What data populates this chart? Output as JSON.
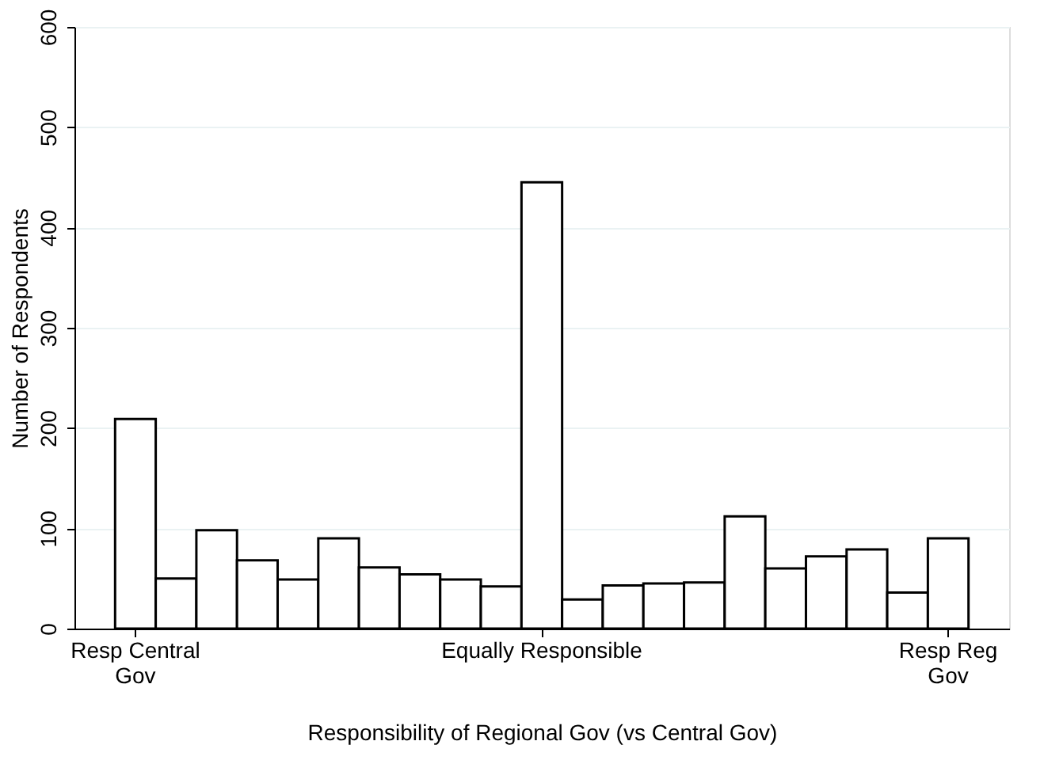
{
  "chart_data": {
    "type": "bar",
    "xlabel": "Responsibility of Regional Gov (vs Central Gov)",
    "ylabel": "Number of Respondents",
    "categories": [
      "Resp Central\nGov",
      null,
      null,
      null,
      null,
      null,
      null,
      null,
      null,
      null,
      "Equally Responsible",
      null,
      null,
      null,
      null,
      null,
      null,
      null,
      null,
      null,
      "Resp Reg\nGov"
    ],
    "values": [
      209,
      50,
      98,
      68,
      49,
      90,
      61,
      54,
      49,
      42,
      445,
      29,
      43,
      45,
      46,
      112,
      60,
      72,
      79,
      36,
      90
    ],
    "color": "#ffffff",
    "ylim": [
      0,
      600
    ],
    "yticks": [
      0,
      100,
      200,
      300,
      400,
      500,
      600
    ],
    "grid": "y"
  }
}
